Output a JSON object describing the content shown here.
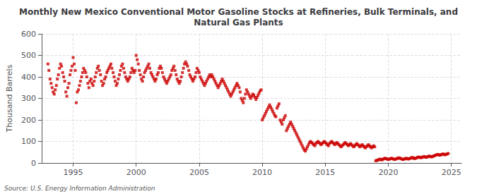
{
  "chart_data": {
    "type": "scatter",
    "title": "Monthly New Mexico Conventional Motor Gasoline Stocks at Refineries, Bulk Terminals, and\nNatural Gas Plants",
    "ylabel": "Thousand Barrels",
    "annotations": [
      "Source: U.S. Energy Information Administration"
    ],
    "color": "#cc0000",
    "marker": "square",
    "grid": true,
    "xlim": [
      1992.5,
      2025.8
    ],
    "xticks": [
      1995,
      2000,
      2005,
      2010,
      2015,
      2020,
      2025
    ],
    "ylim": [
      0,
      600
    ],
    "yticks": [
      0,
      100,
      200,
      300,
      400,
      500,
      600
    ],
    "x": [
      1993.0,
      1993.08,
      1993.17,
      1993.25,
      1993.33,
      1993.42,
      1993.5,
      1993.58,
      1993.67,
      1993.75,
      1993.83,
      1993.92,
      1994.0,
      1994.08,
      1994.17,
      1994.25,
      1994.33,
      1994.42,
      1994.5,
      1994.58,
      1994.67,
      1994.75,
      1994.83,
      1994.92,
      1995.0,
      1995.08,
      1995.17,
      1995.25,
      1995.33,
      1995.42,
      1995.5,
      1995.58,
      1995.67,
      1995.75,
      1995.83,
      1995.92,
      1996.0,
      1996.08,
      1996.17,
      1996.25,
      1996.33,
      1996.42,
      1996.5,
      1996.58,
      1996.67,
      1996.75,
      1996.83,
      1996.92,
      1997.0,
      1997.08,
      1997.17,
      1997.25,
      1997.33,
      1997.42,
      1997.5,
      1997.58,
      1997.67,
      1997.75,
      1997.83,
      1997.92,
      1998.0,
      1998.08,
      1998.17,
      1998.25,
      1998.33,
      1998.42,
      1998.5,
      1998.58,
      1998.67,
      1998.75,
      1998.83,
      1998.92,
      1999.0,
      1999.08,
      1999.17,
      1999.25,
      1999.33,
      1999.42,
      1999.5,
      1999.58,
      1999.67,
      1999.75,
      1999.83,
      1999.92,
      2000.0,
      2000.08,
      2000.17,
      2000.25,
      2000.33,
      2000.42,
      2000.5,
      2000.58,
      2000.67,
      2000.75,
      2000.83,
      2000.92,
      2001.0,
      2001.08,
      2001.17,
      2001.25,
      2001.33,
      2001.42,
      2001.5,
      2001.58,
      2001.67,
      2001.75,
      2001.83,
      2001.92,
      2002.0,
      2002.08,
      2002.17,
      2002.25,
      2002.33,
      2002.42,
      2002.5,
      2002.58,
      2002.67,
      2002.75,
      2002.83,
      2002.92,
      2003.0,
      2003.08,
      2003.17,
      2003.25,
      2003.33,
      2003.42,
      2003.5,
      2003.58,
      2003.67,
      2003.75,
      2003.83,
      2003.92,
      2004.0,
      2004.08,
      2004.17,
      2004.25,
      2004.33,
      2004.42,
      2004.5,
      2004.58,
      2004.67,
      2004.75,
      2004.83,
      2004.92,
      2005.0,
      2005.08,
      2005.17,
      2005.25,
      2005.33,
      2005.42,
      2005.5,
      2005.58,
      2005.67,
      2005.75,
      2005.83,
      2005.92,
      2006.0,
      2006.08,
      2006.17,
      2006.25,
      2006.33,
      2006.42,
      2006.5,
      2006.58,
      2006.67,
      2006.75,
      2006.83,
      2006.92,
      2007.0,
      2007.08,
      2007.17,
      2007.25,
      2007.33,
      2007.42,
      2007.5,
      2007.58,
      2007.67,
      2007.75,
      2007.83,
      2007.92,
      2008.0,
      2008.08,
      2008.17,
      2008.25,
      2008.33,
      2008.42,
      2008.5,
      2008.58,
      2008.67,
      2008.75,
      2008.83,
      2008.92,
      2009.0,
      2009.08,
      2009.17,
      2009.25,
      2009.33,
      2009.42,
      2009.5,
      2009.58,
      2009.67,
      2009.75,
      2009.83,
      2009.92,
      2010.0,
      2010.08,
      2010.17,
      2010.25,
      2010.33,
      2010.42,
      2010.5,
      2010.58,
      2010.67,
      2010.75,
      2010.83,
      2010.92,
      2011.0,
      2011.08,
      2011.17,
      2011.25,
      2011.33,
      2011.42,
      2011.5,
      2011.58,
      2011.67,
      2011.75,
      2011.83,
      2011.92,
      2012.0,
      2012.08,
      2012.17,
      2012.25,
      2012.33,
      2012.42,
      2012.5,
      2012.58,
      2012.67,
      2012.75,
      2012.83,
      2012.92,
      2013.0,
      2013.08,
      2013.17,
      2013.25,
      2013.33,
      2013.42,
      2013.5,
      2013.58,
      2013.67,
      2013.75,
      2013.83,
      2013.92,
      2014.0,
      2014.08,
      2014.17,
      2014.25,
      2014.33,
      2014.42,
      2014.5,
      2014.58,
      2014.67,
      2014.75,
      2014.83,
      2014.92,
      2015.0,
      2015.08,
      2015.17,
      2015.25,
      2015.33,
      2015.42,
      2015.5,
      2015.58,
      2015.67,
      2015.75,
      2015.83,
      2015.92,
      2016.0,
      2016.08,
      2016.17,
      2016.25,
      2016.33,
      2016.42,
      2016.5,
      2016.58,
      2016.67,
      2016.75,
      2016.83,
      2016.92,
      2017.0,
      2017.08,
      2017.17,
      2017.25,
      2017.33,
      2017.42,
      2017.5,
      2017.58,
      2017.67,
      2017.75,
      2017.83,
      2017.92,
      2018.0,
      2018.08,
      2018.17,
      2018.25,
      2018.33,
      2018.42,
      2018.5,
      2018.58,
      2018.67,
      2018.75,
      2018.83,
      2018.92,
      2019.0,
      2019.08,
      2019.17,
      2019.25,
      2019.33,
      2019.42,
      2019.5,
      2019.58,
      2019.67,
      2019.75,
      2019.83,
      2019.92,
      2020.0,
      2020.08,
      2020.17,
      2020.25,
      2020.33,
      2020.42,
      2020.5,
      2020.58,
      2020.67,
      2020.75,
      2020.83,
      2020.92,
      2021.0,
      2021.08,
      2021.17,
      2021.25,
      2021.33,
      2021.42,
      2021.5,
      2021.58,
      2021.67,
      2021.75,
      2021.83,
      2021.92,
      2022.0,
      2022.08,
      2022.17,
      2022.25,
      2022.33,
      2022.42,
      2022.5,
      2022.58,
      2022.67,
      2022.75,
      2022.83,
      2022.92,
      2023.0,
      2023.08,
      2023.17,
      2023.25,
      2023.33,
      2023.42,
      2023.5,
      2023.58,
      2023.67,
      2023.75,
      2023.83,
      2023.92,
      2024.0,
      2024.08,
      2024.17,
      2024.25,
      2024.33,
      2024.42,
      2024.5,
      2024.58,
      2024.67,
      2024.75
    ],
    "values": [
      460,
      430,
      390,
      370,
      350,
      330,
      320,
      340,
      360,
      390,
      410,
      440,
      460,
      450,
      420,
      400,
      380,
      330,
      310,
      350,
      370,
      410,
      430,
      450,
      490,
      460,
      430,
      280,
      330,
      340,
      360,
      380,
      400,
      420,
      440,
      430,
      420,
      400,
      370,
      350,
      380,
      390,
      370,
      360,
      380,
      400,
      420,
      440,
      450,
      430,
      410,
      380,
      360,
      370,
      390,
      400,
      420,
      430,
      440,
      450,
      460,
      440,
      420,
      400,
      380,
      360,
      370,
      390,
      410,
      430,
      450,
      460,
      440,
      420,
      400,
      390,
      380,
      390,
      400,
      420,
      440,
      430,
      420,
      430,
      500,
      480,
      460,
      430,
      410,
      390,
      380,
      400,
      420,
      430,
      440,
      450,
      460,
      440,
      420,
      410,
      400,
      390,
      380,
      390,
      410,
      420,
      440,
      450,
      440,
      420,
      400,
      390,
      380,
      370,
      380,
      390,
      400,
      410,
      430,
      440,
      450,
      430,
      410,
      390,
      380,
      370,
      380,
      400,
      420,
      440,
      460,
      470,
      460,
      450,
      430,
      410,
      400,
      390,
      380,
      390,
      400,
      420,
      440,
      430,
      420,
      400,
      390,
      380,
      370,
      360,
      370,
      380,
      390,
      400,
      410,
      400,
      410,
      400,
      390,
      380,
      370,
      360,
      350,
      360,
      370,
      380,
      390,
      380,
      370,
      360,
      350,
      340,
      330,
      320,
      310,
      320,
      330,
      340,
      350,
      360,
      370,
      360,
      350,
      330,
      300,
      290,
      280,
      300,
      320,
      340,
      330,
      320,
      310,
      300,
      310,
      320,
      315,
      305,
      295,
      305,
      315,
      325,
      335,
      340,
      200,
      210,
      220,
      230,
      240,
      250,
      260,
      270,
      260,
      250,
      240,
      230,
      220,
      215,
      255,
      265,
      275,
      200,
      190,
      180,
      200,
      210,
      220,
      150,
      160,
      170,
      180,
      190,
      180,
      170,
      160,
      150,
      140,
      130,
      120,
      110,
      100,
      90,
      80,
      70,
      60,
      55,
      65,
      75,
      85,
      95,
      100,
      95,
      90,
      85,
      80,
      90,
      95,
      100,
      95,
      90,
      85,
      90,
      95,
      100,
      95,
      90,
      85,
      80,
      90,
      95,
      100,
      95,
      90,
      85,
      90,
      95,
      90,
      85,
      80,
      75,
      80,
      85,
      90,
      95,
      90,
      85,
      80,
      85,
      90,
      85,
      80,
      75,
      80,
      85,
      90,
      85,
      80,
      75,
      80,
      85,
      80,
      75,
      70,
      75,
      80,
      85,
      80,
      75,
      70,
      75,
      80,
      75,
      10,
      12,
      14,
      15,
      18,
      16,
      14,
      18,
      20,
      22,
      20,
      18,
      16,
      18,
      20,
      22,
      20,
      18,
      16,
      18,
      20,
      22,
      24,
      22,
      20,
      18,
      16,
      18,
      20,
      22,
      20,
      18,
      20,
      22,
      24,
      26,
      22,
      20,
      22,
      24,
      26,
      28,
      26,
      24,
      26,
      28,
      30,
      28,
      26,
      28,
      30,
      32,
      30,
      28,
      30,
      32,
      34,
      36,
      38,
      40,
      38,
      36,
      38,
      40,
      42,
      40,
      38,
      40,
      42,
      44
    ]
  }
}
